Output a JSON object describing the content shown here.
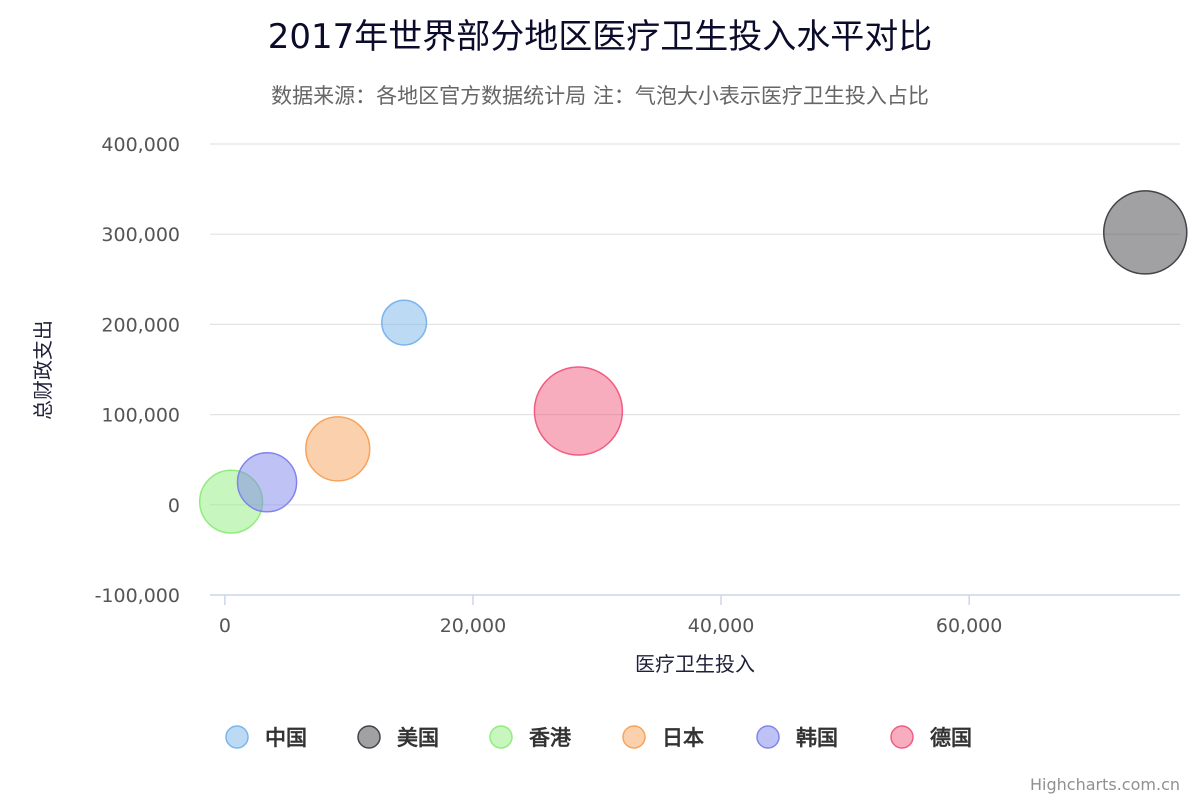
{
  "chart_data": {
    "type": "scatter",
    "title": "2017年世界部分地区医疗卫生投入水平对比",
    "subtitle": "数据来源：各地区官方数据统计局 注：气泡大小表示医疗卫生投入占比",
    "xlabel": "医疗卫生投入",
    "ylabel": "总财政支出",
    "xlim": [
      -1200,
      77000
    ],
    "ylim": [
      -100000,
      400000
    ],
    "x_ticks": [
      0,
      20000,
      40000,
      60000
    ],
    "x_tick_labels": [
      "0",
      "20,000",
      "40,000",
      "60,000"
    ],
    "y_ticks": [
      -100000,
      0,
      100000,
      200000,
      300000,
      400000
    ],
    "y_tick_labels": [
      "-100,000",
      "0",
      "100,000",
      "200,000",
      "300,000",
      "400,000"
    ],
    "grid": true,
    "legend_position": "bottom-left",
    "series": [
      {
        "name": "中国",
        "color": "#7cb5ec",
        "x": 14450,
        "y": 202000,
        "z": 7.1
      },
      {
        "name": "美国",
        "color": "#434348",
        "x": 74200,
        "y": 302000,
        "z": 24.5
      },
      {
        "name": "香港",
        "color": "#90ed7d",
        "x": 500,
        "y": 3500,
        "z": 14.0
      },
      {
        "name": "日本",
        "color": "#f7a35c",
        "x": 9100,
        "y": 62000,
        "z": 14.5
      },
      {
        "name": "韩国",
        "color": "#8085e9",
        "x": 3400,
        "y": 25000,
        "z": 12.4
      },
      {
        "name": "德国",
        "color": "#f15c80",
        "x": 28500,
        "y": 104000,
        "z": 27.5
      }
    ]
  },
  "credits": "Highcharts.com.cn"
}
